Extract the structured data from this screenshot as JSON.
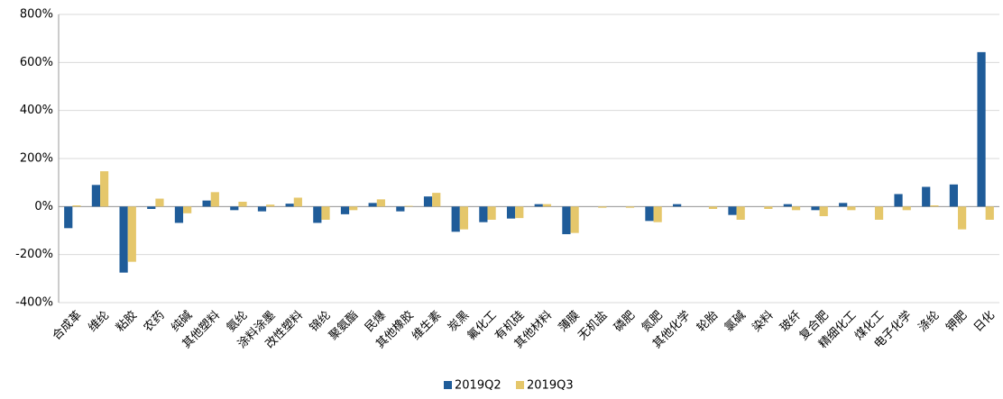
{
  "chart_data": {
    "type": "bar",
    "categories": [
      "合成革",
      "维纶",
      "粘胶",
      "农药",
      "纯碱",
      "其他塑料",
      "氨纶",
      "涂料涂墨",
      "改性塑料",
      "锦纶",
      "聚氨酯",
      "民爆",
      "其他橡胶",
      "维生素",
      "炭黑",
      "氟化工",
      "有机硅",
      "其他材料",
      "薄膜",
      "无机盐",
      "磷肥",
      "氮肥",
      "其他化学",
      "轮胎",
      "氯碱",
      "染料",
      "玻纤",
      "复合肥",
      "精细化工",
      "煤化工",
      "电子化学",
      "涤纶",
      "钾肥",
      "日化"
    ],
    "series": [
      {
        "name": "2019Q2",
        "color": "#1f5c99",
        "values": [
          -90,
          90,
          -275,
          -10,
          -68,
          25,
          -15,
          -20,
          12,
          -68,
          -32,
          15,
          -20,
          42,
          -105,
          -65,
          -50,
          10,
          -115,
          0,
          0,
          -60,
          10,
          0,
          -35,
          0,
          10,
          -15,
          15,
          0,
          52,
          82,
          92,
          643
        ]
      },
      {
        "name": "2019Q3",
        "color": "#e5c76b",
        "values": [
          5,
          147,
          -230,
          33,
          -28,
          60,
          20,
          8,
          37,
          -55,
          -15,
          30,
          3,
          57,
          -95,
          -55,
          -48,
          10,
          -110,
          -5,
          -5,
          -65,
          0,
          -10,
          -55,
          -10,
          -15,
          -40,
          -15,
          -55,
          -15,
          5,
          -95,
          -55
        ]
      }
    ],
    "ylim": [
      -400,
      800
    ],
    "yticks": [
      {
        "value": -400,
        "label": "-400%"
      },
      {
        "value": -200,
        "label": "-200%"
      },
      {
        "value": 0,
        "label": "0%"
      },
      {
        "value": 200,
        "label": "200%"
      },
      {
        "value": 400,
        "label": "400%"
      },
      {
        "value": 600,
        "label": "600%"
      },
      {
        "value": 800,
        "label": "800%"
      }
    ],
    "grid": true,
    "legend": "bottom"
  }
}
